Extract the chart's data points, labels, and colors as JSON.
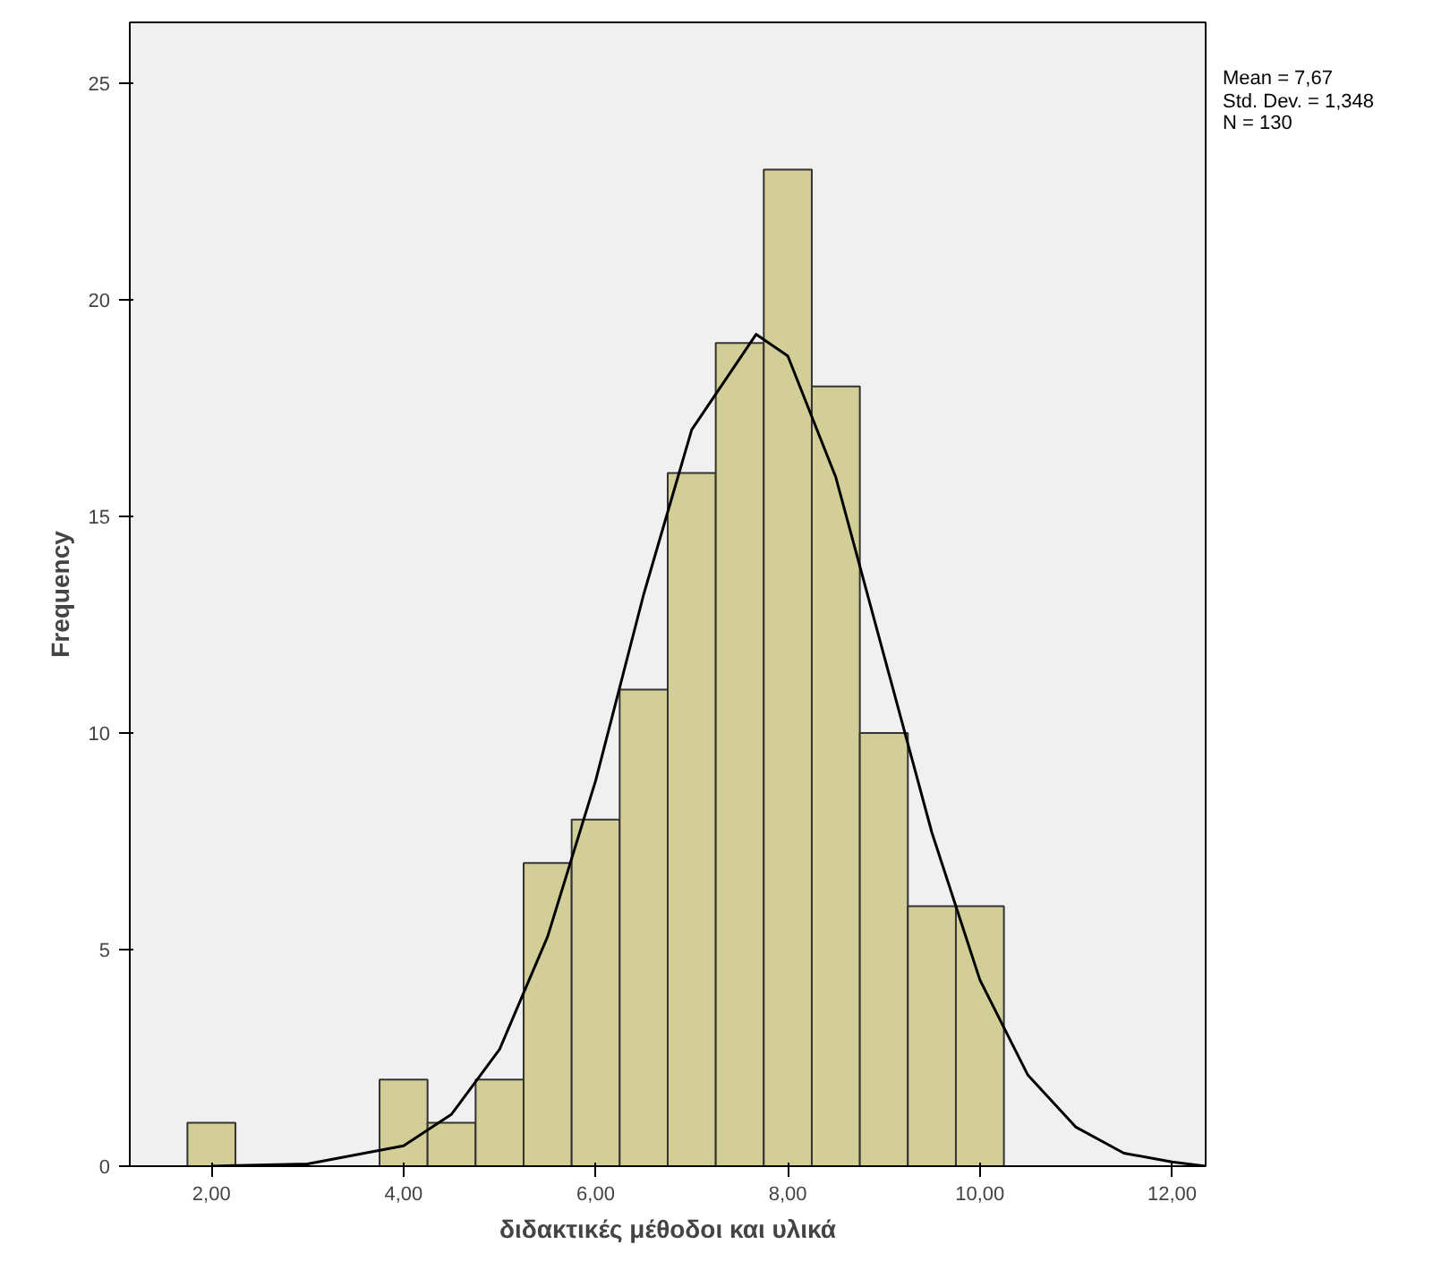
{
  "chart_data": {
    "type": "histogram",
    "xlabel": "διδακτικές μέθοδοι και υλικά",
    "ylabel": "Frequency",
    "bins": [
      1.75,
      2.25,
      2.75,
      3.25,
      3.75,
      4.25,
      4.75,
      5.25,
      5.75,
      6.25,
      6.75,
      7.25,
      7.75,
      8.25,
      8.75,
      9.25,
      9.75,
      10.25
    ],
    "values": [
      1,
      0,
      0,
      0,
      2,
      1,
      2,
      7,
      8,
      11,
      16,
      19,
      23,
      18,
      10,
      6,
      6
    ],
    "color": "#d3ce97",
    "series": [
      {
        "type": "line",
        "color": "#000000",
        "x": [
          2,
          3,
          4,
          4.5,
          5,
          5.5,
          6,
          6.5,
          7,
          7.67,
          8,
          8.5,
          9,
          9.5,
          10,
          10.5,
          11,
          11.5,
          12,
          12.35
        ],
        "values": [
          0.0,
          0.05,
          0.47,
          1.2,
          2.7,
          5.3,
          8.9,
          13.2,
          17.0,
          19.2,
          18.7,
          15.9,
          11.8,
          7.7,
          4.3,
          2.1,
          0.9,
          0.3,
          0.1,
          0.0
        ]
      }
    ],
    "xlim": [
      1.15,
      12.35
    ],
    "ylim": [
      0,
      26.4
    ],
    "xticks": [
      {
        "value": 2,
        "label": "2,00"
      },
      {
        "value": 4,
        "label": "4,00"
      },
      {
        "value": 6,
        "label": "6,00"
      },
      {
        "value": 8,
        "label": "8,00"
      },
      {
        "value": 10,
        "label": "10,00"
      },
      {
        "value": 12,
        "label": "12,00"
      }
    ],
    "yticks": [
      0,
      5,
      10,
      15,
      20,
      25
    ],
    "grid": false,
    "annotations": [
      "Mean = 7,67",
      "Std. Dev. = 1,348",
      "N = 130"
    ]
  }
}
